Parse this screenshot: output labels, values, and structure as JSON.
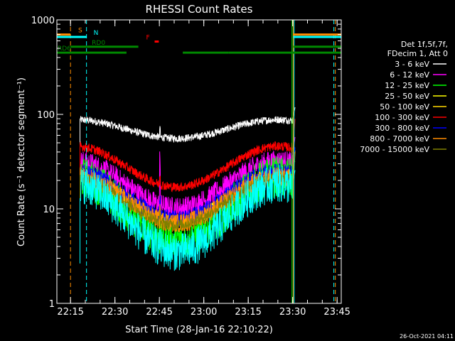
{
  "chart_data": {
    "type": "line",
    "title": "RHESSI Count Rates",
    "xlabel": "Start Time (28-Jan-16 22:10:22)",
    "ylabel": "Count Rate (s⁻¹ detector segment⁻¹)",
    "yscale": "log",
    "ylim": [
      1,
      1000
    ],
    "xlim_minutes": [
      0,
      96
    ],
    "x_unit": "minutes since 22:10:22",
    "x_tick_labels": [
      "22:15",
      "22:30",
      "22:45",
      "23:00",
      "23:15",
      "23:30",
      "23:45"
    ],
    "x_tick_minutes": [
      4.6,
      19.6,
      34.6,
      49.6,
      64.6,
      79.6,
      94.6
    ],
    "y_tick_labels": [
      "1",
      "10",
      "100",
      "1000"
    ],
    "y_tick_values": [
      1,
      10,
      100,
      1000
    ],
    "timestamp": "26-Oct-2021 04:11",
    "legend_header": [
      "Det 1f,5f,7f,",
      "FDecim 1, Att 0"
    ],
    "legend_position": "right",
    "series": [
      {
        "name": "3 - 6 keV",
        "color": "#ffffff",
        "baseline": 70,
        "amp": 0.22,
        "noise": 0.04,
        "spike": 1.2
      },
      {
        "name": "6 - 12 keV",
        "color": "#ff00ff",
        "baseline": 18,
        "amp": 0.55,
        "noise": 0.12,
        "spike": 3.0
      },
      {
        "name": "12 - 25 keV",
        "color": "#00ff00",
        "baseline": 10,
        "amp": 0.75,
        "noise": 0.22,
        "spike": 1.6
      },
      {
        "name": "25 - 50 keV",
        "color": "#ffff00",
        "baseline": 13,
        "amp": 0.55,
        "noise": 0.07,
        "spike": 1.2
      },
      {
        "name": "50 - 100 keV",
        "color": "#ffd700",
        "baseline": 13,
        "amp": 0.55,
        "noise": 0.07,
        "spike": 1.2
      },
      {
        "name": "100 - 300 keV",
        "color": "#ff0000",
        "baseline": 28,
        "amp": 0.48,
        "noise": 0.05,
        "spike": 1.3
      },
      {
        "name": "300 - 800 keV",
        "color": "#0000ff",
        "baseline": 14,
        "amp": 0.55,
        "noise": 0.09,
        "spike": 1.6
      },
      {
        "name": "800 - 7000 keV",
        "color": "#ff8c00",
        "baseline": 12.5,
        "amp": 0.55,
        "noise": 0.1,
        "spike": 1.3
      },
      {
        "name": "7000 - 15000 keV",
        "color": "#808000",
        "baseline": 12,
        "amp": 0.55,
        "noise": 0.06,
        "spike": 1.2
      },
      {
        "name": "",
        "color": "#00ffff",
        "baseline": 8,
        "amp": 0.8,
        "noise": 0.2,
        "spike": 1.2
      }
    ],
    "series_start_minute": 7.8,
    "series_end_minute": 79.8,
    "flag_bars": [
      {
        "label": "S",
        "color": "#ff8c00",
        "value": 700,
        "segments": [
          [
            0,
            4.6
          ],
          [
            79.8,
            96
          ]
        ]
      },
      {
        "label": "N",
        "color": "#00ffff",
        "value": 660,
        "segments": [
          [
            0,
            10
          ],
          [
            79.8,
            96
          ]
        ]
      },
      {
        "label": "F",
        "color": "#ff0000",
        "value": 590,
        "segments": [
          [
            33,
            34.4
          ]
        ]
      },
      {
        "label": "RD0",
        "color": "#008800",
        "value": 520,
        "segments": [
          [
            4.6,
            27.5
          ],
          [
            79.8,
            96
          ]
        ]
      },
      {
        "label": "RD6",
        "color": "#008800",
        "value": 450,
        "segments": [
          [
            0,
            23.5
          ],
          [
            42.5,
            58
          ],
          [
            58,
            69
          ],
          [
            69,
            96
          ]
        ]
      }
    ],
    "event_lines": [
      {
        "minute": 0,
        "color": "#00ffff",
        "style": "solid"
      },
      {
        "minute": 4.6,
        "color": "#ff8c00",
        "style": "dashed"
      },
      {
        "minute": 10,
        "color": "#00ffff",
        "style": "dashed"
      },
      {
        "minute": 79.4,
        "color": "#00ff00",
        "style": "solid"
      },
      {
        "minute": 79.8,
        "color": "#ff8c00",
        "style": "solid"
      },
      {
        "minute": 80.1,
        "color": "#00ffff",
        "style": "solid"
      },
      {
        "minute": 93.5,
        "color": "#00ffff",
        "style": "dashed"
      },
      {
        "minute": 94,
        "color": "#ff8c00",
        "style": "dashed"
      }
    ]
  }
}
